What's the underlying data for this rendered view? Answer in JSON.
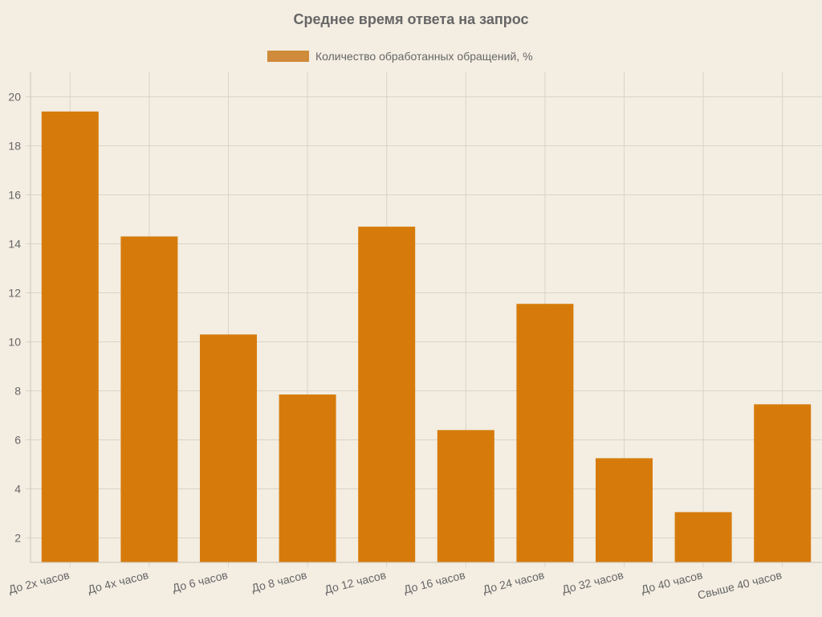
{
  "chart_data": {
    "type": "bar",
    "title": "Среднее время ответа на запрос",
    "xlabel": "",
    "ylabel": "",
    "categories": [
      "До 2х часов",
      "До 4х часов",
      "До 6 часов",
      "До 8 часов",
      "До 12 часов",
      "До 16 часов",
      "До 24 часов",
      "До 32 часов",
      "До 40 часов",
      "Свыше 40 часов"
    ],
    "series": [
      {
        "name": "Количество обработанных обращений, %",
        "values": [
          19.4,
          14.3,
          10.3,
          7.85,
          14.7,
          6.4,
          11.55,
          5.25,
          3.05,
          7.45
        ]
      }
    ],
    "ylim": [
      1,
      21
    ],
    "yticks": [
      2,
      4,
      6,
      8,
      10,
      12,
      14,
      16,
      18,
      20
    ],
    "grid": true,
    "legend_position": "top-center",
    "colors": {
      "bar": "#d67b0b",
      "legend_swatch": "#cf8a3a",
      "background": "#f3ede2"
    }
  }
}
